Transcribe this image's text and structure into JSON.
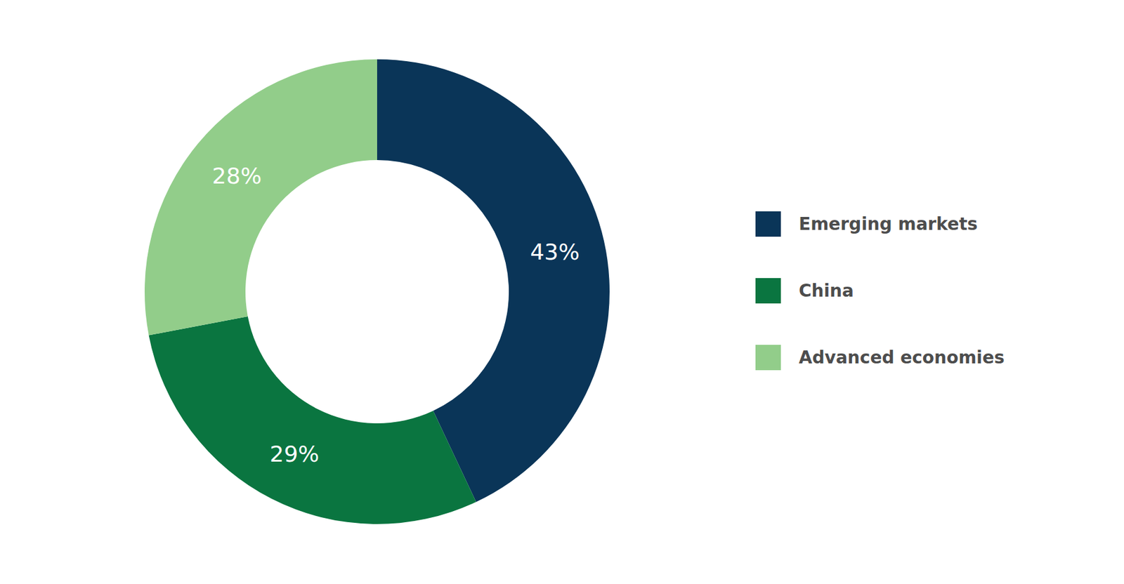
{
  "chart_data": {
    "type": "pie",
    "categories": [
      "Emerging markets",
      "China",
      "Advanced economies"
    ],
    "values": [
      43,
      29,
      28
    ],
    "value_labels": [
      "43%",
      "29%",
      "28%"
    ],
    "colors": [
      "#0a3558",
      "#0a7540",
      "#92cd8a"
    ],
    "data_labels": true,
    "legend": "right"
  }
}
